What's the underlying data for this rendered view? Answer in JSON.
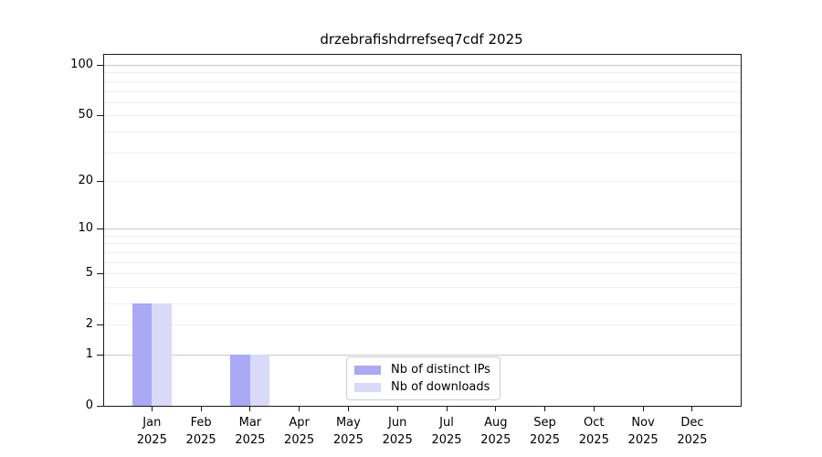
{
  "title": "drzebrafishdrrefseq7cdf 2025",
  "chart_data": {
    "type": "bar",
    "title": "drzebrafishdrrefseq7cdf 2025",
    "categories": [
      "Jan",
      "Feb",
      "Mar",
      "Apr",
      "May",
      "Jun",
      "Jul",
      "Aug",
      "Sep",
      "Oct",
      "Nov",
      "Dec"
    ],
    "year_label": "2025",
    "series": [
      {
        "name": "Nb of distinct IPs",
        "color": "#a9a9f6",
        "values": [
          3,
          0,
          1,
          0,
          0,
          0,
          0,
          0,
          0,
          0,
          0,
          0
        ]
      },
      {
        "name": "Nb of downloads",
        "color": "#d9d9fa",
        "values": [
          3,
          0,
          1,
          0,
          0,
          0,
          0,
          0,
          0,
          0,
          0,
          0
        ]
      }
    ],
    "xlabel": "",
    "ylabel": "",
    "yscale": "log1p",
    "ylim": [
      0,
      100
    ],
    "yticks": [
      0,
      1,
      2,
      5,
      10,
      20,
      50,
      100
    ],
    "major_gridlines": [
      1,
      10,
      100
    ],
    "minor_gridlines": [
      2,
      3,
      4,
      5,
      6,
      7,
      8,
      9,
      20,
      30,
      40,
      50,
      60,
      70,
      80,
      90
    ],
    "grid": true,
    "legend_position": "bottom-center"
  }
}
